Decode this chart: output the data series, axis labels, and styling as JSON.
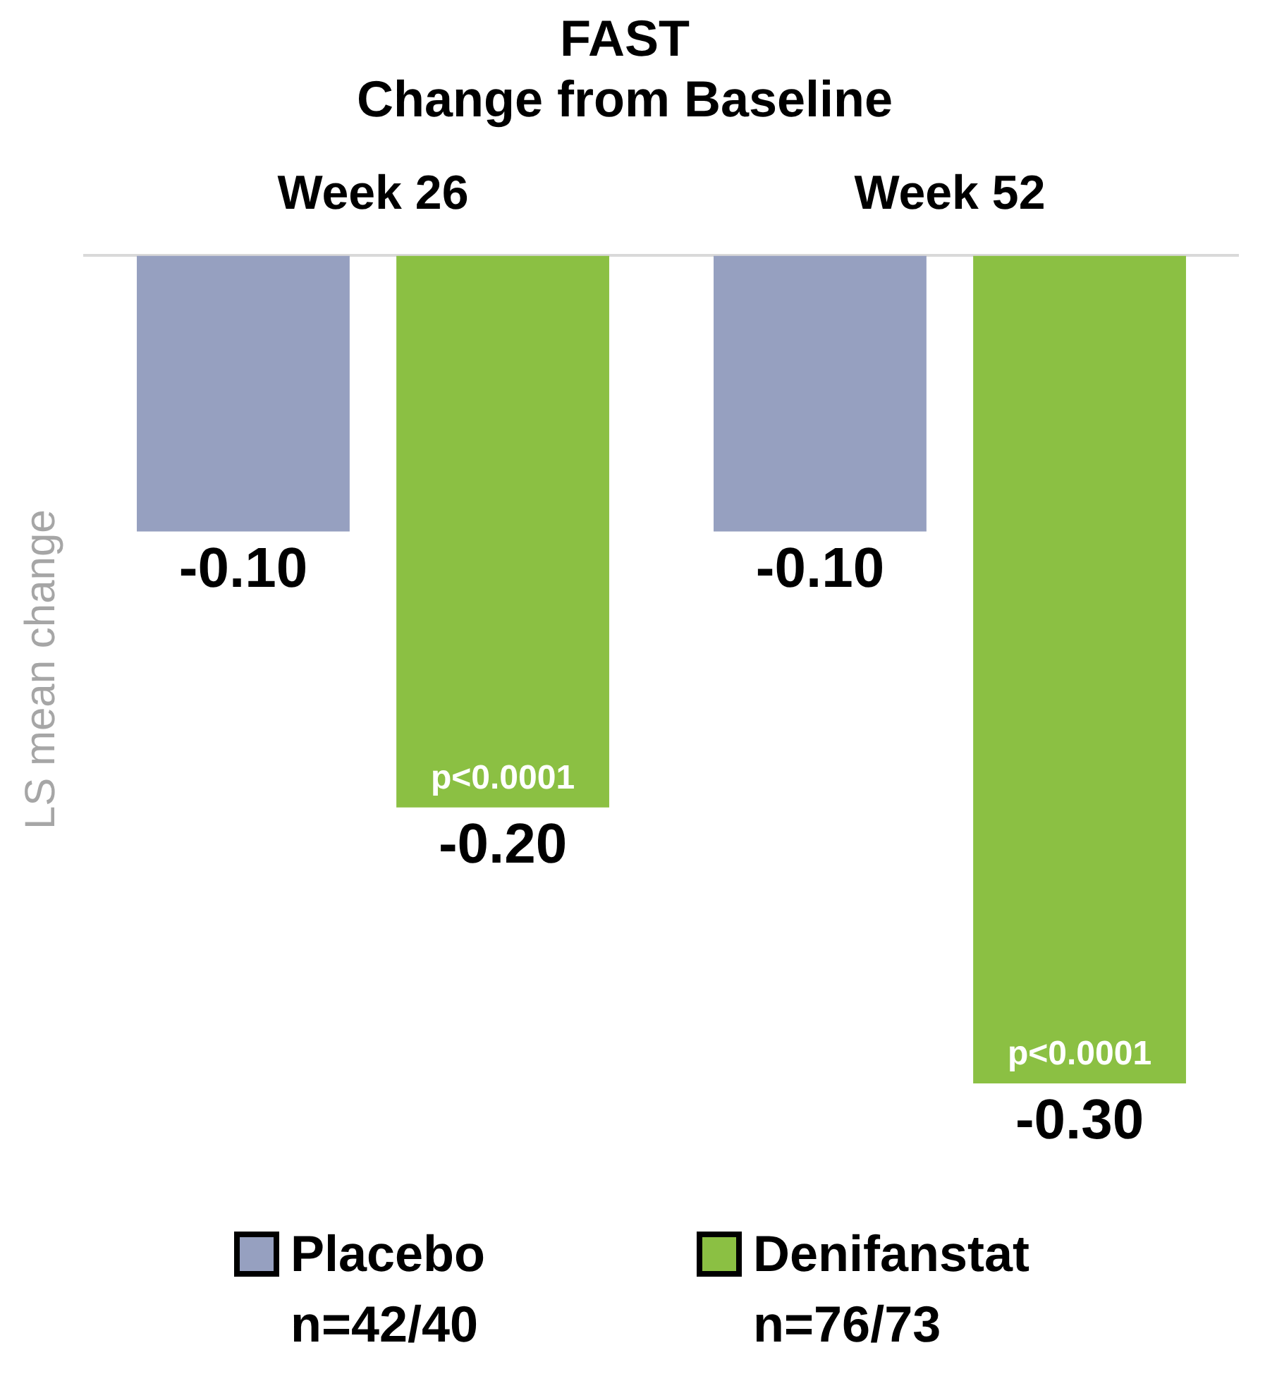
{
  "chart_data": {
    "type": "bar",
    "title": [
      "FAST",
      "Change from Baseline"
    ],
    "ylabel": "LS mean change",
    "categories": [
      "Week 26",
      "Week 52"
    ],
    "series": [
      {
        "name": "Placebo",
        "color": "#96a0c0",
        "values": [
          -0.1,
          -0.1
        ],
        "value_labels": [
          "-0.10",
          "-0.10"
        ]
      },
      {
        "name": "Denifanstat",
        "color": "#8bc043",
        "values": [
          -0.2,
          -0.3
        ],
        "value_labels": [
          "-0.20",
          "-0.30"
        ]
      }
    ],
    "legend": "bottom",
    "annotations": [
      "p<0.0001",
      "p<0.0001",
      "n=42/40",
      "n=76/73"
    ]
  }
}
